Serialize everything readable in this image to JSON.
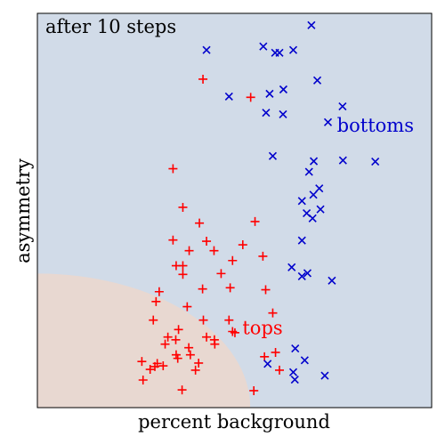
{
  "colors": {
    "region_bottoms": "#d1dbe8",
    "region_tops": "#e8d8d1",
    "tops_marker": "#ff0000",
    "bottoms_marker": "#0000cc",
    "axes": "#000000"
  },
  "chart_data": {
    "type": "scatter",
    "title": "after  10 steps",
    "xlabel": "percent background",
    "ylabel": "asymmetry",
    "xlim": [
      0,
      1
    ],
    "ylim": [
      0,
      1
    ],
    "ticks": "none",
    "grid": false,
    "regions": {
      "tops_region": "lower-left quarter-disc (radius about 0.54 in x, 0.34 in y from the lower-left corner)",
      "bottoms_region": "remainder of the plot area"
    },
    "series": [
      {
        "name": "tops",
        "marker": "plus",
        "label_at": [
          0.52,
          0.186
        ],
        "points": [
          [
            0.42,
            0.833
          ],
          [
            0.541,
            0.787
          ],
          [
            0.344,
            0.606
          ],
          [
            0.369,
            0.508
          ],
          [
            0.411,
            0.468
          ],
          [
            0.552,
            0.472
          ],
          [
            0.344,
            0.425
          ],
          [
            0.429,
            0.422
          ],
          [
            0.521,
            0.413
          ],
          [
            0.385,
            0.398
          ],
          [
            0.448,
            0.398
          ],
          [
            0.495,
            0.373
          ],
          [
            0.572,
            0.384
          ],
          [
            0.352,
            0.36
          ],
          [
            0.369,
            0.36
          ],
          [
            0.369,
            0.338
          ],
          [
            0.466,
            0.34
          ],
          [
            0.309,
            0.294
          ],
          [
            0.419,
            0.301
          ],
          [
            0.489,
            0.304
          ],
          [
            0.579,
            0.299
          ],
          [
            0.301,
            0.269
          ],
          [
            0.38,
            0.256
          ],
          [
            0.597,
            0.24
          ],
          [
            0.294,
            0.222
          ],
          [
            0.421,
            0.222
          ],
          [
            0.486,
            0.222
          ],
          [
            0.358,
            0.198
          ],
          [
            0.495,
            0.193
          ],
          [
            0.501,
            0.19
          ],
          [
            0.331,
            0.179
          ],
          [
            0.429,
            0.179
          ],
          [
            0.324,
            0.161
          ],
          [
            0.351,
            0.172
          ],
          [
            0.449,
            0.172
          ],
          [
            0.384,
            0.152
          ],
          [
            0.45,
            0.161
          ],
          [
            0.604,
            0.14
          ],
          [
            0.352,
            0.134
          ],
          [
            0.388,
            0.134
          ],
          [
            0.576,
            0.129
          ],
          [
            0.265,
            0.117
          ],
          [
            0.304,
            0.112
          ],
          [
            0.356,
            0.125
          ],
          [
            0.409,
            0.113
          ],
          [
            0.298,
            0.104
          ],
          [
            0.319,
            0.106
          ],
          [
            0.401,
            0.095
          ],
          [
            0.286,
            0.097
          ],
          [
            0.614,
            0.095
          ],
          [
            0.268,
            0.07
          ],
          [
            0.367,
            0.045
          ],
          [
            0.549,
            0.043
          ]
        ]
      },
      {
        "name": "bottoms",
        "marker": "x",
        "label_at": [
          0.76,
          0.7
        ],
        "points": [
          [
            0.695,
            0.97
          ],
          [
            0.429,
            0.907
          ],
          [
            0.573,
            0.916
          ],
          [
            0.603,
            0.9
          ],
          [
            0.614,
            0.9
          ],
          [
            0.649,
            0.907
          ],
          [
            0.71,
            0.83
          ],
          [
            0.624,
            0.807
          ],
          [
            0.589,
            0.796
          ],
          [
            0.486,
            0.789
          ],
          [
            0.774,
            0.764
          ],
          [
            0.58,
            0.748
          ],
          [
            0.623,
            0.744
          ],
          [
            0.737,
            0.724
          ],
          [
            0.597,
            0.638
          ],
          [
            0.701,
            0.625
          ],
          [
            0.775,
            0.627
          ],
          [
            0.857,
            0.624
          ],
          [
            0.689,
            0.598
          ],
          [
            0.715,
            0.556
          ],
          [
            0.7,
            0.54
          ],
          [
            0.671,
            0.524
          ],
          [
            0.718,
            0.503
          ],
          [
            0.683,
            0.493
          ],
          [
            0.698,
            0.48
          ],
          [
            0.671,
            0.424
          ],
          [
            0.645,
            0.356
          ],
          [
            0.685,
            0.341
          ],
          [
            0.671,
            0.333
          ],
          [
            0.747,
            0.322
          ],
          [
            0.654,
            0.15
          ],
          [
            0.678,
            0.12
          ],
          [
            0.584,
            0.111
          ],
          [
            0.649,
            0.09
          ],
          [
            0.653,
            0.071
          ],
          [
            0.729,
            0.081
          ]
        ]
      }
    ]
  }
}
